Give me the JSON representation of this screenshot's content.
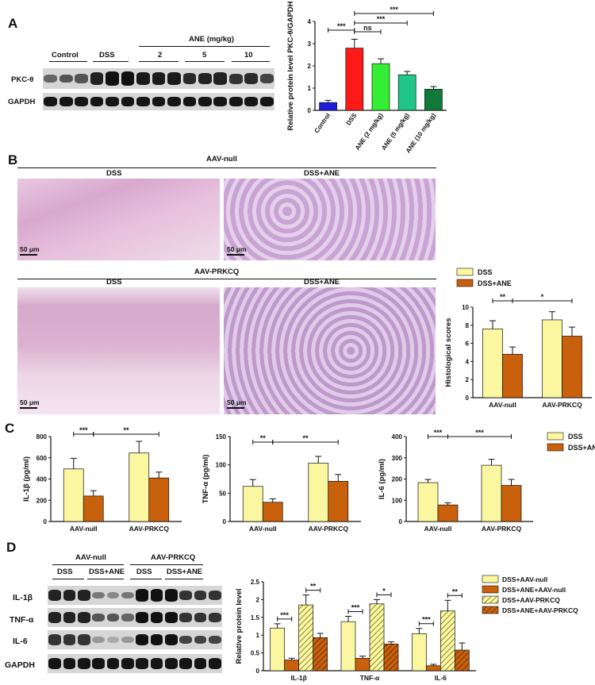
{
  "panels": {
    "a": "A",
    "b": "B",
    "c": "C",
    "d": "D"
  },
  "colors": {
    "control": "#1d1de0",
    "dss_red": "#ff1a1a",
    "ane2": "#33ee33",
    "ane5": "#1ec68a",
    "ane10": "#117a3a",
    "dss_yellow": "#fbf7a0",
    "dss_ane_orange": "#c8600c"
  },
  "A": {
    "group_labels": [
      "Control",
      "DSS",
      "ANE (mg/kg)"
    ],
    "dose_labels": [
      "2",
      "5",
      "10"
    ],
    "row_labels": [
      "PKC-θ",
      "GAPDH"
    ]
  },
  "B": {
    "group1": "AAV-null",
    "group2": "AAV-PRKCQ",
    "col_dss": "DSS",
    "col_dssane": "DSS+ANE",
    "scalebar": "50 μm",
    "legend": [
      "DSS",
      "DSS+ANE"
    ]
  },
  "C": {
    "legend": [
      "DSS",
      "DSS+ANE"
    ]
  },
  "D": {
    "group1": "AAV-null",
    "group2": "AAV-PRKCQ",
    "sub_labels": [
      "DSS",
      "DSS+ANE",
      "DSS",
      "DSS+ANE"
    ],
    "row_labels": [
      "IL-1β",
      "TNF-α",
      "IL-6",
      "GAPDH"
    ]
  },
  "chart_data": [
    {
      "id": "A",
      "type": "bar",
      "ylabel": "Relative protein level PKC-θ/GAPDH",
      "ylim": [
        0,
        4
      ],
      "yticks": [
        0,
        1,
        2,
        3,
        4
      ],
      "categories": [
        "Control",
        "DSS",
        "ANE (2 mg/kg)",
        "ANE (5 mg/kg)",
        "ANE (10 mg/kg)"
      ],
      "values": [
        0.35,
        2.8,
        2.1,
        1.6,
        0.95
      ],
      "errors": [
        0.1,
        0.4,
        0.22,
        0.15,
        0.12
      ],
      "significance": [
        {
          "from": 0,
          "to": 1,
          "label": "***"
        },
        {
          "from": 1,
          "to": 2,
          "label": "ns"
        },
        {
          "from": 1,
          "to": 3,
          "label": "***"
        },
        {
          "from": 1,
          "to": 4,
          "label": "***"
        }
      ]
    },
    {
      "id": "B",
      "type": "bar",
      "ylabel": "Histological scores",
      "ylim": [
        0,
        10
      ],
      "yticks": [
        0,
        2,
        4,
        6,
        8,
        10
      ],
      "categories": [
        "AAV-null",
        "AAV-PRKCQ"
      ],
      "series": [
        {
          "name": "DSS",
          "values": [
            7.6,
            8.6
          ],
          "errors": [
            0.9,
            0.9
          ]
        },
        {
          "name": "DSS+ANE",
          "values": [
            4.8,
            6.8
          ],
          "errors": [
            0.8,
            1.0
          ]
        }
      ],
      "significance": [
        {
          "label": "**",
          "span": "null-DSS to null-DSS+ANE"
        },
        {
          "label": "*",
          "span": "null-DSS+ANE to PRKCQ-DSS+ANE"
        }
      ]
    },
    {
      "id": "C1",
      "type": "bar",
      "ylabel": "IL-1β (pg/ml)",
      "ylim": [
        0,
        800
      ],
      "yticks": [
        0,
        200,
        400,
        600,
        800
      ],
      "categories": [
        "AAV-null",
        "AAV-PRKCQ"
      ],
      "series": [
        {
          "name": "DSS",
          "values": [
            495,
            645
          ],
          "errors": [
            100,
            110
          ]
        },
        {
          "name": "DSS+ANE",
          "values": [
            240,
            410
          ],
          "errors": [
            50,
            55
          ]
        }
      ],
      "significance": [
        {
          "label": "***"
        },
        {
          "label": "**"
        }
      ]
    },
    {
      "id": "C2",
      "type": "bar",
      "ylabel": "TNF-α (pg/ml)",
      "ylim": [
        0,
        150
      ],
      "yticks": [
        0,
        50,
        100,
        150
      ],
      "categories": [
        "AAV-null",
        "AAV-PRKCQ"
      ],
      "series": [
        {
          "name": "DSS",
          "values": [
            62,
            103
          ],
          "errors": [
            12,
            12
          ]
        },
        {
          "name": "DSS+ANE",
          "values": [
            34,
            71
          ],
          "errors": [
            6,
            12
          ]
        }
      ],
      "significance": [
        {
          "label": "**"
        },
        {
          "label": "**"
        }
      ]
    },
    {
      "id": "C3",
      "type": "bar",
      "ylabel": "IL-6 (pg/ml)",
      "ylim": [
        0,
        400
      ],
      "yticks": [
        0,
        100,
        200,
        300,
        400
      ],
      "categories": [
        "AAV-null",
        "AAV-PRKCQ"
      ],
      "series": [
        {
          "name": "DSS",
          "values": [
            183,
            265
          ],
          "errors": [
            15,
            28
          ]
        },
        {
          "name": "DSS+ANE",
          "values": [
            78,
            170
          ],
          "errors": [
            10,
            28
          ]
        }
      ],
      "significance": [
        {
          "label": "***"
        },
        {
          "label": "***"
        }
      ]
    },
    {
      "id": "D",
      "type": "bar",
      "ylabel": "Relative protein level",
      "ylim": [
        0,
        2.5
      ],
      "yticks": [
        0.0,
        0.5,
        1.0,
        1.5,
        2.0,
        2.5
      ],
      "categories": [
        "IL-1β",
        "TNF-α",
        "IL-6"
      ],
      "series": [
        {
          "name": "DSS+AAV-null",
          "values": [
            1.2,
            1.38,
            1.04
          ],
          "errors": [
            0.12,
            0.15,
            0.15
          ]
        },
        {
          "name": "DSS+ANE+AAV-null",
          "values": [
            0.3,
            0.35,
            0.14
          ],
          "errors": [
            0.05,
            0.06,
            0.04
          ]
        },
        {
          "name": "DSS+AAV-PRKCQ",
          "values": [
            1.85,
            1.88,
            1.68
          ],
          "errors": [
            0.28,
            0.12,
            0.3
          ]
        },
        {
          "name": "DSS+ANE+AAV-PRKCQ",
          "values": [
            0.93,
            0.75,
            0.58
          ],
          "errors": [
            0.12,
            0.06,
            0.2
          ]
        }
      ],
      "significance": [
        {
          "label": "***"
        },
        {
          "label": "**"
        },
        {
          "label": "***"
        },
        {
          "label": "*"
        },
        {
          "label": "***"
        },
        {
          "label": "**"
        }
      ]
    }
  ]
}
